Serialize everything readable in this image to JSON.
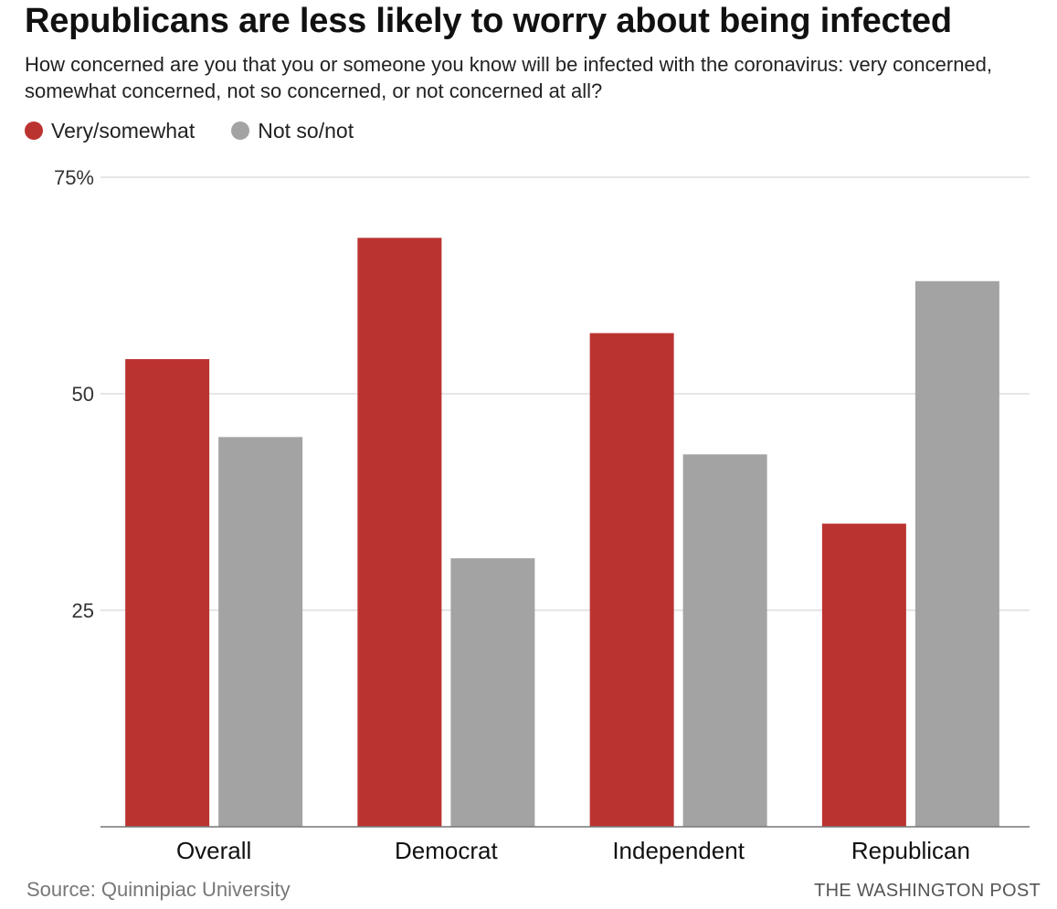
{
  "title": "Republicans are less likely to worry about being infected",
  "subtitle": "How concerned are you that you or someone you know will be infected with the coronavirus: very concerned, somewhat concerned, not so concerned, or not concerned at all?",
  "legend": [
    {
      "label": "Very/somewhat",
      "color": "#bb3330"
    },
    {
      "label": "Not so/not",
      "color": "#a3a3a3"
    }
  ],
  "source": "Source: Quinnipiac University",
  "credit": "THE WASHINGTON POST",
  "chart_data": {
    "type": "bar",
    "categories": [
      "Overall",
      "Democrat",
      "Independent",
      "Republican"
    ],
    "series": [
      {
        "name": "Very/somewhat",
        "color": "#bb3330",
        "values": [
          54,
          68,
          57,
          35
        ]
      },
      {
        "name": "Not so/not",
        "color": "#a3a3a3",
        "values": [
          45,
          31,
          43,
          63
        ]
      }
    ],
    "ylim": [
      0,
      75
    ],
    "yticks": [
      {
        "value": 75,
        "label": "75%"
      },
      {
        "value": 50,
        "label": "50"
      },
      {
        "value": 25,
        "label": "25"
      }
    ],
    "grid": true,
    "legend_position": "top-left"
  }
}
